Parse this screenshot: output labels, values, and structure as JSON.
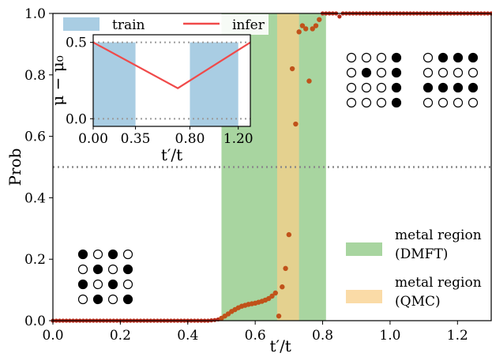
{
  "chart_data": {
    "type": "scatter",
    "xlabel": "t′/t",
    "ylabel": "Prob",
    "xlim": [
      0.0,
      1.3
    ],
    "ylim": [
      0.0,
      1.0
    ],
    "xticks": [
      "0.0",
      "0.2",
      "0.4",
      "0.6",
      "0.8",
      "1.0",
      "1.2"
    ],
    "yticks": [
      "0.0",
      "0.2",
      "0.4",
      "0.6",
      "0.8",
      "1.0"
    ],
    "threshold": 0.5,
    "bands": [
      {
        "x0": 0.5,
        "x1": 0.81,
        "color": "#a8d5a0",
        "label_line1": "metal region",
        "label_line2": "(DMFT)"
      },
      {
        "x0": 0.665,
        "x1": 0.73,
        "color": "#f8cf8a",
        "label_line1": "metal region",
        "label_line2": "(QMC)"
      }
    ],
    "series": [
      {
        "marker_color": "#b82a1a",
        "x": [
          0.0,
          0.01,
          0.02,
          0.03,
          0.04,
          0.05,
          0.06,
          0.07,
          0.08,
          0.09,
          0.1,
          0.11,
          0.12,
          0.13,
          0.14,
          0.15,
          0.16,
          0.17,
          0.18,
          0.19,
          0.2,
          0.21,
          0.22,
          0.23,
          0.24,
          0.25,
          0.26,
          0.27,
          0.28,
          0.29,
          0.3,
          0.31,
          0.32,
          0.33,
          0.34,
          0.35,
          0.36,
          0.37,
          0.38,
          0.39,
          0.4,
          0.41,
          0.42,
          0.43,
          0.44,
          0.45,
          0.46,
          0.47,
          0.48,
          0.49,
          0.5,
          0.51,
          0.52,
          0.53,
          0.54,
          0.55,
          0.56,
          0.57,
          0.58,
          0.59,
          0.6,
          0.61,
          0.62,
          0.63,
          0.64,
          0.65,
          0.66,
          0.67,
          0.68,
          0.69,
          0.7,
          0.71,
          0.72,
          0.73,
          0.74,
          0.75,
          0.76,
          0.77,
          0.78,
          0.79,
          0.8,
          0.81,
          0.82,
          0.83,
          0.84,
          0.85,
          0.86,
          0.87,
          0.88,
          0.89,
          0.9,
          0.91,
          0.92,
          0.93,
          0.94,
          0.95,
          0.96,
          0.97,
          0.98,
          0.99,
          1.0,
          1.01,
          1.02,
          1.03,
          1.04,
          1.05,
          1.06,
          1.07,
          1.08,
          1.09,
          1.1,
          1.11,
          1.12,
          1.13,
          1.14,
          1.15,
          1.16,
          1.17,
          1.18,
          1.19,
          1.2,
          1.21,
          1.22,
          1.23,
          1.24,
          1.25,
          1.26,
          1.27,
          1.28,
          1.29,
          1.3
        ],
        "y": [
          0,
          0,
          0,
          0,
          0,
          0,
          0,
          0,
          0,
          0,
          0,
          0,
          0,
          0,
          0,
          0,
          0,
          0,
          0,
          0,
          0,
          0,
          0,
          0,
          0,
          0,
          0,
          0,
          0,
          0,
          0,
          0,
          0,
          0,
          0,
          0,
          0,
          0,
          0,
          0,
          0,
          0,
          0,
          0,
          0,
          0,
          0,
          0.001,
          0.002,
          0.004,
          0.008,
          0.015,
          0.022,
          0.03,
          0.036,
          0.042,
          0.047,
          0.05,
          0.053,
          0.055,
          0.057,
          0.06,
          0.063,
          0.067,
          0.072,
          0.08,
          0.09,
          0.015,
          0.11,
          0.17,
          0.28,
          0.82,
          0.64,
          0.94,
          0.96,
          0.95,
          0.78,
          0.95,
          0.96,
          0.98,
          1.0,
          1.0,
          1.0,
          1.0,
          1.0,
          0.99,
          1.0,
          1.0,
          1.0,
          1.0,
          1.0,
          1.0,
          1.0,
          1.0,
          1.0,
          1.0,
          1.0,
          1.0,
          1.0,
          1.0,
          1.0,
          1.0,
          1.0,
          1.0,
          1.0,
          1.0,
          1.0,
          1.0,
          1.0,
          1.0,
          1.0,
          1.0,
          1.0,
          1.0,
          1.0,
          1.0,
          1.0,
          1.0,
          1.0,
          1.0,
          1.0,
          1.0,
          1.0,
          1.0,
          1.0,
          1.0,
          1.0,
          1.0,
          1.0,
          1.0,
          1.0
        ]
      }
    ],
    "legend_main": [
      "metal region",
      "(DMFT)",
      "metal region",
      "(QMC)"
    ],
    "inset": {
      "xlabel": "t′/t",
      "ylabel": "μ − μ₀",
      "xlim": [
        0.0,
        1.3
      ],
      "ylim": [
        -0.05,
        0.55
      ],
      "xticks": [
        "0.00",
        "0.35",
        "0.80",
        "1.20"
      ],
      "yticks": [
        "0.0",
        "0.5"
      ],
      "train_regions": [
        [
          0.0,
          0.35
        ],
        [
          0.8,
          1.2
        ]
      ],
      "infer_line": {
        "x": [
          0.0,
          0.7,
          1.3
        ],
        "y": [
          0.5,
          0.2,
          0.5
        ]
      },
      "legend": [
        {
          "label": "train",
          "color": "#a9cde3"
        },
        {
          "label": "infer",
          "color": "#f04a4a"
        }
      ]
    },
    "lattice_patterns": [
      {
        "rows": [
          [
            1,
            0,
            1,
            0
          ],
          [
            0,
            1,
            0,
            1
          ],
          [
            1,
            0,
            1,
            0
          ],
          [
            0,
            1,
            0,
            1
          ]
        ]
      },
      {
        "rows": [
          [
            0,
            0,
            0,
            1
          ],
          [
            0,
            1,
            0,
            1
          ],
          [
            0,
            0,
            0,
            1
          ],
          [
            0,
            0,
            0,
            1
          ]
        ]
      },
      {
        "rows": [
          [
            0,
            1,
            1,
            1
          ],
          [
            0,
            0,
            0,
            0
          ],
          [
            1,
            1,
            1,
            1
          ],
          [
            0,
            0,
            0,
            0
          ]
        ]
      }
    ]
  }
}
